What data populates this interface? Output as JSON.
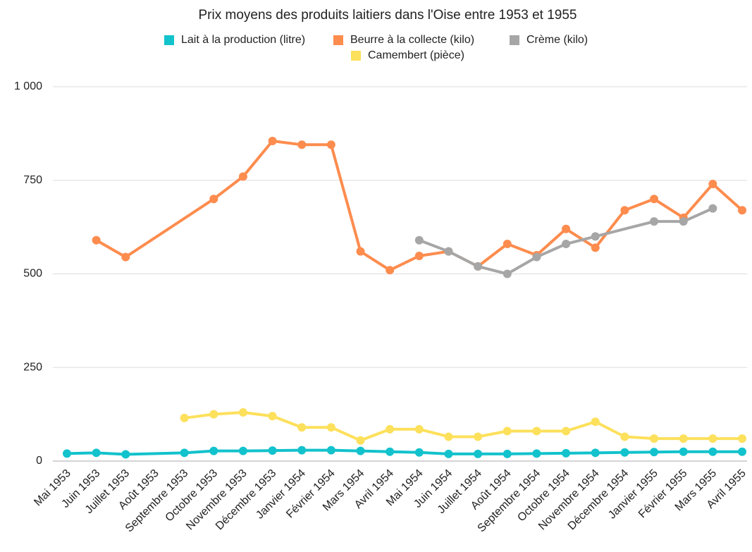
{
  "chart_data": {
    "type": "line",
    "title": "Prix moyens des produits laitiers dans l'Oise entre 1953 et 1955",
    "categories": [
      "Mai 1953",
      "Juin 1953",
      "Juillet 1953",
      "Août 1953",
      "Septembre 1953",
      "Octobre 1953",
      "Novembre 1953",
      "Décembre 1953",
      "Janvier 1954",
      "Février 1954",
      "Mars 1954",
      "Avril 1954",
      "Mai 1954",
      "Juin 1954",
      "Juillet 1954",
      "Août 1954",
      "Septembre 1954",
      "Octobre 1954",
      "Novembre 1954",
      "Décembre 1954",
      "Janvier 1955",
      "Février 1955",
      "Mars 1955",
      "Avril 1955"
    ],
    "series": [
      {
        "name": "Lait à la production (litre)",
        "color": "#12c2cc",
        "values": [
          20,
          22,
          18,
          null,
          22,
          27,
          27,
          28,
          29,
          29,
          27,
          25,
          23,
          19,
          19,
          19,
          20,
          21,
          22,
          23,
          24,
          25,
          25,
          25
        ]
      },
      {
        "name": "Beurre à la collecte (kilo)",
        "color": "#fd8c4e",
        "values": [
          null,
          590,
          545,
          null,
          null,
          700,
          760,
          855,
          845,
          845,
          560,
          510,
          548,
          560,
          520,
          580,
          550,
          620,
          570,
          670,
          700,
          650,
          740,
          670
        ]
      },
      {
        "name": "Crème (kilo)",
        "color": "#a6a6a6",
        "values": [
          null,
          null,
          null,
          null,
          null,
          null,
          null,
          null,
          null,
          null,
          null,
          null,
          590,
          560,
          520,
          500,
          545,
          580,
          600,
          null,
          640,
          640,
          675,
          null
        ]
      },
      {
        "name": "Camembert (pièce)",
        "color": "#fde05b",
        "values": [
          null,
          null,
          null,
          null,
          115,
          125,
          130,
          120,
          90,
          90,
          55,
          85,
          85,
          65,
          65,
          80,
          80,
          80,
          105,
          65,
          60,
          60,
          60,
          60
        ]
      }
    ],
    "ylim": [
      0,
      1000
    ],
    "yticks": [
      0,
      250,
      500,
      750,
      {
        "value": 1000,
        "label": "1 000"
      }
    ],
    "grid": true,
    "span_gaps": true
  }
}
